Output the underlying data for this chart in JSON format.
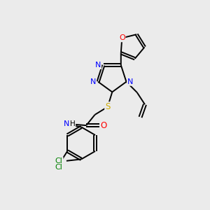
{
  "background_color": "#ebebeb",
  "bond_color": "#000000",
  "atom_colors": {
    "N": "#0000ff",
    "O": "#ff0000",
    "S": "#ccaa00",
    "Cl": "#008000",
    "C": "#000000",
    "H": "#000000"
  },
  "bond_width": 1.4,
  "figsize": [
    3.0,
    3.0
  ],
  "dpi": 100
}
